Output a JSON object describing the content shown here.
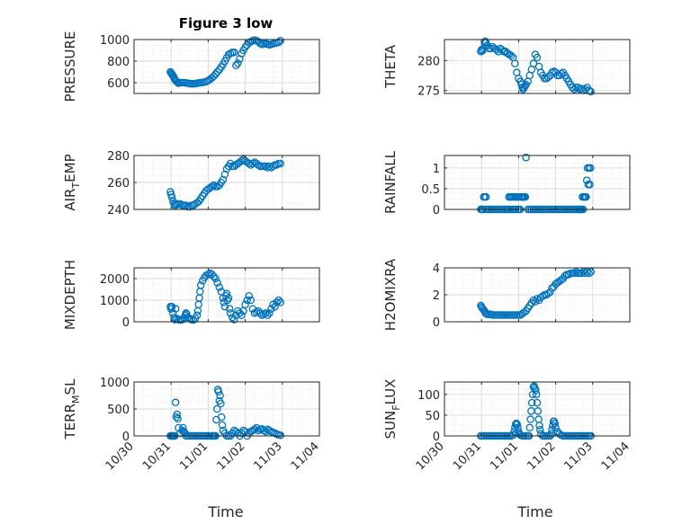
{
  "figure": {
    "title": "Figure 3 low",
    "xlabel": "Time",
    "marker_color": "#0072BD",
    "grid_color": "#d9d9d9",
    "axis_color": "#262626"
  },
  "chart_data": [
    {
      "type": "scatter",
      "ylabel": "PRESSURE",
      "ylabel_sub": "",
      "ylabel_tail": "",
      "xlim": [
        "10/30",
        "11/04"
      ],
      "xticks": [],
      "ylim": [
        500,
        1000
      ],
      "yticks": [
        600,
        800,
        1000
      ],
      "x": [
        0.98,
        1.0,
        1.02,
        1.04,
        1.06,
        1.08,
        1.1,
        1.12,
        1.15,
        1.18,
        1.2,
        1.25,
        1.3,
        1.35,
        1.4,
        1.45,
        1.5,
        1.55,
        1.6,
        1.65,
        1.7,
        1.75,
        1.8,
        1.85,
        1.9,
        1.95,
        2.0,
        2.05,
        2.1,
        2.15,
        2.2,
        2.25,
        2.3,
        2.35,
        2.4,
        2.45,
        2.5,
        2.55,
        2.6,
        2.65,
        2.7,
        2.75,
        2.8,
        2.85,
        2.9,
        2.95,
        3.0,
        3.05,
        3.1,
        3.15,
        3.2,
        3.25,
        3.3,
        3.35,
        3.4,
        3.45,
        3.5,
        3.55,
        3.6,
        3.65,
        3.7,
        3.75,
        3.8,
        3.85,
        3.9,
        3.95
      ],
      "y": [
        700,
        690,
        680,
        670,
        660,
        645,
        630,
        620,
        610,
        600,
        595,
        600,
        600,
        600,
        598,
        595,
        592,
        590,
        590,
        592,
        595,
        598,
        600,
        602,
        605,
        610,
        620,
        630,
        645,
        660,
        680,
        700,
        720,
        745,
        770,
        800,
        830,
        860,
        870,
        880,
        880,
        760,
        780,
        820,
        870,
        900,
        930,
        950,
        970,
        980,
        990,
        995,
        990,
        980,
        965,
        955,
        960,
        965,
        955,
        950,
        955,
        960,
        965,
        970,
        975,
        990
      ],
      "xtick_labels": []
    },
    {
      "type": "scatter",
      "ylabel": "THETA",
      "ylabel_sub": "",
      "ylabel_tail": "",
      "xlim": [
        "10/30",
        "11/04"
      ],
      "xticks": [],
      "ylim": [
        274.5,
        283.5
      ],
      "yticks": [
        275,
        280
      ],
      "x": [
        0.98,
        1.0,
        1.02,
        1.05,
        1.08,
        1.1,
        1.12,
        1.15,
        1.2,
        1.25,
        1.3,
        1.35,
        1.4,
        1.45,
        1.5,
        1.55,
        1.6,
        1.65,
        1.7,
        1.75,
        1.8,
        1.85,
        1.9,
        1.95,
        2.0,
        2.05,
        2.08,
        2.1,
        2.12,
        2.15,
        2.18,
        2.2,
        2.25,
        2.3,
        2.35,
        2.4,
        2.45,
        2.5,
        2.55,
        2.6,
        2.65,
        2.7,
        2.75,
        2.8,
        2.85,
        2.9,
        2.95,
        3.0,
        3.05,
        3.1,
        3.15,
        3.2,
        3.25,
        3.3,
        3.35,
        3.4,
        3.45,
        3.5,
        3.55,
        3.6,
        3.65,
        3.7,
        3.75,
        3.8,
        3.85,
        3.9,
        3.95
      ],
      "y": [
        281.5,
        281.8,
        281.6,
        282.0,
        283.0,
        283.2,
        283.0,
        282.5,
        282.0,
        282.0,
        282.3,
        282.0,
        281.8,
        281.5,
        282.0,
        281.8,
        281.5,
        281.5,
        281.2,
        281.0,
        280.8,
        280.5,
        279.5,
        278.0,
        277.0,
        276.5,
        276.0,
        275.5,
        275.2,
        275.5,
        275.8,
        276.0,
        276.5,
        277.5,
        278.5,
        279.5,
        281.0,
        280.5,
        279.0,
        278.0,
        277.5,
        277.0,
        277.0,
        277.2,
        277.5,
        278.0,
        278.2,
        278.0,
        277.5,
        277.5,
        277.8,
        278.0,
        277.5,
        277.0,
        276.5,
        276.0,
        275.5,
        275.2,
        275.5,
        275.5,
        275.2,
        275.3,
        275.0,
        275.2,
        275.5,
        275.0,
        274.8
      ],
      "xtick_labels": []
    },
    {
      "type": "scatter",
      "ylabel": "AIR",
      "ylabel_sub": "T",
      "ylabel_tail": "EMP",
      "xlim": [
        "10/30",
        "11/04"
      ],
      "xticks": [],
      "ylim": [
        240,
        280
      ],
      "yticks": [
        240,
        260,
        280
      ],
      "x": [
        0.98,
        1.0,
        1.02,
        1.05,
        1.08,
        1.1,
        1.12,
        1.15,
        1.2,
        1.25,
        1.3,
        1.35,
        1.4,
        1.45,
        1.5,
        1.55,
        1.6,
        1.65,
        1.7,
        1.75,
        1.8,
        1.85,
        1.9,
        1.95,
        2.0,
        2.05,
        2.1,
        2.15,
        2.2,
        2.25,
        2.3,
        2.35,
        2.4,
        2.45,
        2.5,
        2.55,
        2.6,
        2.65,
        2.7,
        2.75,
        2.8,
        2.85,
        2.9,
        2.95,
        3.0,
        3.05,
        3.1,
        3.15,
        3.2,
        3.25,
        3.3,
        3.35,
        3.4,
        3.45,
        3.5,
        3.55,
        3.6,
        3.65,
        3.7,
        3.75,
        3.8,
        3.85,
        3.9,
        3.95
      ],
      "y": [
        253,
        251,
        249,
        246,
        244,
        243,
        243,
        244,
        244,
        244,
        243,
        243,
        243,
        242,
        242,
        243,
        243,
        244,
        245,
        246,
        248,
        250,
        252,
        254,
        255,
        256,
        257,
        258,
        257,
        257,
        258,
        260,
        262,
        266,
        270,
        272,
        274,
        272,
        272,
        273,
        274,
        275,
        276,
        277,
        276,
        275,
        274,
        273,
        274,
        275,
        274,
        273,
        272,
        272,
        272,
        272,
        271,
        272,
        271,
        272,
        273,
        273,
        274,
        274
      ],
      "xtick_labels": []
    },
    {
      "type": "scatter",
      "ylabel": "RAINFALL",
      "ylabel_sub": "",
      "ylabel_tail": "",
      "xlim": [
        "10/30",
        "11/04"
      ],
      "xticks": [],
      "ylim": [
        0,
        1.3
      ],
      "yticks": [
        0,
        0.5,
        1
      ],
      "x": [
        0.98,
        1.0,
        1.02,
        1.04,
        1.06,
        1.08,
        1.1,
        1.12,
        1.15,
        1.2,
        1.25,
        1.3,
        1.35,
        1.4,
        1.45,
        1.5,
        1.55,
        1.6,
        1.65,
        1.7,
        1.72,
        1.74,
        1.76,
        1.78,
        1.8,
        1.82,
        1.84,
        1.86,
        1.88,
        1.9,
        1.92,
        1.94,
        1.96,
        1.98,
        2.0,
        2.02,
        2.04,
        2.06,
        2.08,
        2.1,
        2.12,
        2.14,
        2.16,
        2.18,
        2.2,
        2.25,
        2.3,
        2.35,
        2.4,
        2.45,
        2.5,
        2.55,
        2.6,
        2.65,
        2.7,
        2.75,
        2.8,
        2.85,
        2.9,
        2.95,
        3.0,
        3.05,
        3.1,
        3.15,
        3.2,
        3.25,
        3.3,
        3.35,
        3.4,
        3.45,
        3.5,
        3.55,
        3.6,
        3.62,
        3.64,
        3.66,
        3.68,
        3.7,
        3.72,
        3.74,
        3.76,
        3.78,
        3.8,
        3.82,
        3.84,
        3.86,
        3.88,
        3.9,
        3.92,
        3.94
      ],
      "y": [
        0,
        0,
        0,
        0,
        0.3,
        0.3,
        0,
        0.3,
        0,
        0,
        0,
        0,
        0,
        0,
        0,
        0,
        0,
        0,
        0,
        0,
        0,
        0.3,
        0.3,
        0,
        0.3,
        0.3,
        0,
        0.3,
        0,
        0.3,
        0,
        0.3,
        0.3,
        0,
        0.3,
        0,
        0,
        0.3,
        0.3,
        0.3,
        0.3,
        0.3,
        0.3,
        0.3,
        1.25,
        0,
        0,
        0,
        0,
        0,
        0,
        0,
        0,
        0,
        0,
        0,
        0,
        0,
        0,
        0,
        0,
        0,
        0,
        0,
        0,
        0,
        0,
        0,
        0,
        0,
        0,
        0,
        0,
        0,
        0,
        0,
        0,
        0,
        0.3,
        0,
        0.3,
        0.3,
        0.3,
        0.3,
        0.7,
        1.0,
        0.6,
        1.0,
        0.6,
        1.0
      ],
      "xtick_labels": []
    },
    {
      "type": "scatter",
      "ylabel": "MIXDEPTH",
      "ylabel_sub": "",
      "ylabel_tail": "",
      "xlim": [
        "10/30",
        "11/04"
      ],
      "xticks": [],
      "ylim": [
        0,
        2500
      ],
      "yticks": [
        0,
        1000,
        2000
      ],
      "x": [
        0.98,
        1.0,
        1.02,
        1.05,
        1.08,
        1.1,
        1.12,
        1.15,
        1.2,
        1.25,
        1.3,
        1.35,
        1.38,
        1.4,
        1.42,
        1.45,
        1.5,
        1.55,
        1.6,
        1.65,
        1.7,
        1.72,
        1.74,
        1.76,
        1.78,
        1.8,
        1.85,
        1.9,
        1.95,
        2.0,
        2.05,
        2.1,
        2.15,
        2.2,
        2.25,
        2.3,
        2.35,
        2.4,
        2.42,
        2.45,
        2.48,
        2.5,
        2.52,
        2.55,
        2.58,
        2.6,
        2.65,
        2.7,
        2.75,
        2.8,
        2.85,
        2.9,
        2.95,
        3.0,
        3.05,
        3.1,
        3.15,
        3.2,
        3.25,
        3.3,
        3.35,
        3.4,
        3.45,
        3.5,
        3.55,
        3.6,
        3.65,
        3.7,
        3.75,
        3.8,
        3.85,
        3.9,
        3.95
      ],
      "y": [
        700,
        600,
        700,
        400,
        200,
        100,
        600,
        150,
        100,
        80,
        100,
        200,
        300,
        400,
        350,
        200,
        150,
        100,
        80,
        150,
        300,
        500,
        800,
        1100,
        1400,
        1700,
        1900,
        2050,
        2150,
        2200,
        2250,
        2200,
        2100,
        2000,
        1800,
        1600,
        1400,
        1100,
        900,
        700,
        1200,
        1300,
        1000,
        1100,
        600,
        400,
        200,
        100,
        300,
        500,
        400,
        300,
        500,
        800,
        1000,
        1200,
        1000,
        600,
        400,
        450,
        500,
        400,
        300,
        350,
        400,
        300,
        400,
        600,
        800,
        700,
        900,
        1000,
        900
      ],
      "xtick_labels": []
    },
    {
      "type": "scatter",
      "ylabel": "H2OMIXRA",
      "ylabel_sub": "",
      "ylabel_tail": "",
      "xlim": [
        "10/30",
        "11/04"
      ],
      "xticks": [],
      "ylim": [
        0,
        4
      ],
      "yticks": [
        0,
        2,
        4
      ],
      "x": [
        0.98,
        1.0,
        1.02,
        1.05,
        1.08,
        1.1,
        1.12,
        1.15,
        1.2,
        1.25,
        1.3,
        1.35,
        1.4,
        1.45,
        1.5,
        1.55,
        1.6,
        1.65,
        1.7,
        1.75,
        1.8,
        1.85,
        1.9,
        1.95,
        2.0,
        2.05,
        2.1,
        2.15,
        2.2,
        2.25,
        2.3,
        2.35,
        2.4,
        2.45,
        2.5,
        2.55,
        2.6,
        2.65,
        2.7,
        2.75,
        2.8,
        2.85,
        2.9,
        2.95,
        3.0,
        3.05,
        3.1,
        3.15,
        3.2,
        3.25,
        3.3,
        3.35,
        3.4,
        3.45,
        3.5,
        3.55,
        3.6,
        3.65,
        3.7,
        3.75,
        3.8,
        3.85,
        3.9,
        3.95
      ],
      "y": [
        1.2,
        1.1,
        1.0,
        0.9,
        0.8,
        0.7,
        0.6,
        0.55,
        0.55,
        0.55,
        0.5,
        0.5,
        0.5,
        0.5,
        0.5,
        0.5,
        0.5,
        0.5,
        0.5,
        0.5,
        0.5,
        0.5,
        0.5,
        0.5,
        0.5,
        0.5,
        0.6,
        0.7,
        0.8,
        1.0,
        1.2,
        1.4,
        1.6,
        1.5,
        1.7,
        1.6,
        1.8,
        1.9,
        2.0,
        2.0,
        2.1,
        2.2,
        2.5,
        2.6,
        2.8,
        2.9,
        3.0,
        3.1,
        3.2,
        3.4,
        3.5,
        3.5,
        3.6,
        3.6,
        3.6,
        3.7,
        3.6,
        3.6,
        3.6,
        3.7,
        3.6,
        3.7,
        3.6,
        3.7
      ],
      "xtick_labels": []
    },
    {
      "type": "scatter",
      "ylabel": "TERR",
      "ylabel_sub": "M",
      "ylabel_tail": "SL",
      "xlim": [
        "10/30",
        "11/04"
      ],
      "xticks": [
        "10/30",
        "10/31",
        "11/01",
        "11/02",
        "11/03",
        "11/04"
      ],
      "ylim": [
        0,
        1000
      ],
      "yticks": [
        0,
        500,
        1000
      ],
      "x": [
        0.98,
        1.0,
        1.02,
        1.04,
        1.06,
        1.08,
        1.1,
        1.12,
        1.14,
        1.16,
        1.18,
        1.2,
        1.25,
        1.3,
        1.32,
        1.34,
        1.36,
        1.38,
        1.4,
        1.45,
        1.5,
        1.55,
        1.6,
        1.65,
        1.7,
        1.75,
        1.8,
        1.85,
        1.9,
        1.95,
        2.0,
        2.05,
        2.1,
        2.12,
        2.14,
        2.16,
        2.18,
        2.2,
        2.22,
        2.24,
        2.26,
        2.28,
        2.3,
        2.32,
        2.34,
        2.36,
        2.38,
        2.4,
        2.45,
        2.5,
        2.55,
        2.6,
        2.65,
        2.7,
        2.75,
        2.8,
        2.85,
        2.9,
        2.95,
        3.0,
        3.05,
        3.1,
        3.15,
        3.2,
        3.25,
        3.3,
        3.35,
        3.4,
        3.45,
        3.5,
        3.55,
        3.6,
        3.65,
        3.7,
        3.75,
        3.8,
        3.85,
        3.9,
        3.95
      ],
      "y": [
        0,
        0,
        0,
        0,
        0,
        0,
        0,
        620,
        350,
        400,
        320,
        150,
        50,
        100,
        150,
        80,
        60,
        50,
        0,
        0,
        0,
        0,
        0,
        0,
        0,
        0,
        0,
        0,
        0,
        0,
        0,
        0,
        0,
        0,
        0,
        0,
        0,
        0,
        300,
        500,
        860,
        820,
        650,
        750,
        600,
        350,
        200,
        100,
        50,
        0,
        0,
        0,
        50,
        100,
        80,
        50,
        0,
        50,
        100,
        80,
        0,
        50,
        80,
        100,
        120,
        150,
        100,
        120,
        130,
        100,
        80,
        120,
        100,
        80,
        60,
        50,
        30,
        20,
        10
      ],
      "xtick_labels": [
        "10/30",
        "10/31",
        "11/01",
        "11/02",
        "11/03",
        "11/04"
      ]
    },
    {
      "type": "scatter",
      "ylabel": "SUN",
      "ylabel_sub": "F",
      "ylabel_tail": "LUX",
      "xlim": [
        "10/30",
        "11/04"
      ],
      "xticks": [
        "10/30",
        "10/31",
        "11/01",
        "11/02",
        "11/03",
        "11/04"
      ],
      "ylim": [
        0,
        130
      ],
      "yticks": [
        0,
        50,
        100
      ],
      "x": [
        0.98,
        1.0,
        1.05,
        1.1,
        1.15,
        1.2,
        1.25,
        1.3,
        1.35,
        1.4,
        1.45,
        1.5,
        1.55,
        1.6,
        1.65,
        1.7,
        1.75,
        1.8,
        1.85,
        1.88,
        1.9,
        1.92,
        1.94,
        1.96,
        1.98,
        2.0,
        2.02,
        2.05,
        2.1,
        2.15,
        2.2,
        2.25,
        2.28,
        2.3,
        2.32,
        2.34,
        2.36,
        2.38,
        2.4,
        2.42,
        2.44,
        2.46,
        2.48,
        2.5,
        2.52,
        2.54,
        2.56,
        2.58,
        2.6,
        2.65,
        2.7,
        2.75,
        2.8,
        2.85,
        2.88,
        2.9,
        2.92,
        2.94,
        2.96,
        2.98,
        3.0,
        3.05,
        3.1,
        3.15,
        3.2,
        3.25,
        3.3,
        3.35,
        3.4,
        3.45,
        3.5,
        3.55,
        3.6,
        3.65,
        3.7,
        3.75,
        3.8,
        3.85,
        3.9,
        3.95
      ],
      "y": [
        0,
        0,
        0,
        0,
        0,
        0,
        0,
        0,
        0,
        0,
        0,
        0,
        0,
        0,
        0,
        0,
        0,
        0,
        2,
        10,
        20,
        28,
        30,
        28,
        20,
        10,
        5,
        2,
        0,
        0,
        0,
        0,
        0,
        20,
        40,
        60,
        80,
        100,
        118,
        120,
        115,
        110,
        100,
        80,
        60,
        40,
        25,
        15,
        5,
        0,
        0,
        0,
        0,
        0,
        5,
        15,
        25,
        35,
        35,
        30,
        20,
        10,
        5,
        2,
        0,
        0,
        0,
        0,
        0,
        0,
        0,
        0,
        0,
        0,
        0,
        0,
        0,
        0,
        0,
        0
      ],
      "xtick_labels": [
        "10/30",
        "10/31",
        "11/01",
        "11/02",
        "11/03",
        "11/04"
      ]
    }
  ]
}
